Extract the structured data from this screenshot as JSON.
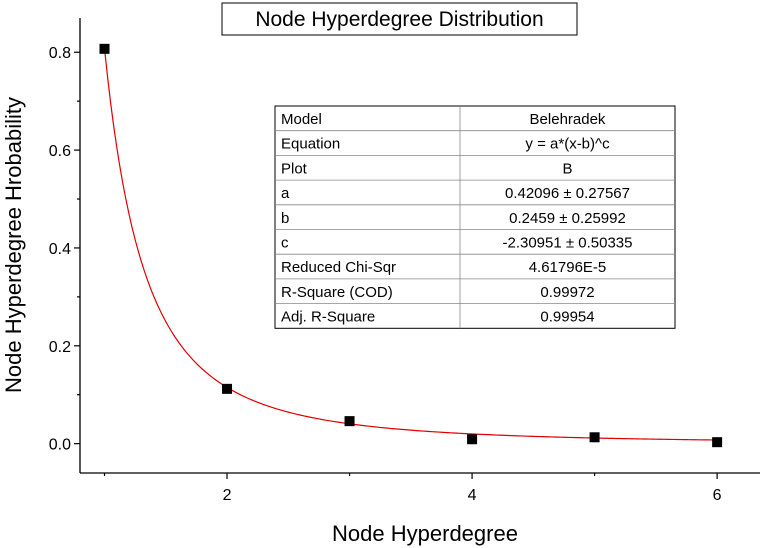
{
  "chart_data": {
    "type": "scatter",
    "title": "Node  Hyperdegree Distribution",
    "xlabel": "Node  Hyperdegree",
    "ylabel": "Node Hyperdegree Hrobability",
    "xlim": [
      0.8,
      6.35
    ],
    "ylim": [
      -0.06,
      0.87
    ],
    "x_ticks": [
      2,
      4,
      6
    ],
    "y_ticks": [
      0.0,
      0.2,
      0.4,
      0.6,
      0.8
    ],
    "y_tick_labels": [
      "0.0",
      "0.2",
      "0.4",
      "0.6",
      "0.8"
    ],
    "series": [
      {
        "x": [
          1,
          2,
          3,
          4,
          5,
          6
        ],
        "y": [
          0.807,
          0.112,
          0.046,
          0.009,
          0.013,
          0.003
        ],
        "marker": "square",
        "color": "#000000"
      }
    ],
    "fit": {
      "a": 0.42096,
      "b": 0.2459,
      "c": -2.30951,
      "x_range": [
        1.0,
        6.0
      ],
      "color": "#e00000"
    },
    "fit_table": {
      "rows": [
        [
          "Model",
          "Belehradek"
        ],
        [
          "Equation",
          "y = a*(x-b)^c"
        ],
        [
          "Plot",
          "B"
        ],
        [
          "a",
          "0.42096 ± 0.27567"
        ],
        [
          "b",
          "0.2459 ± 0.25992"
        ],
        [
          "c",
          "-2.30951 ± 0.50335"
        ],
        [
          "Reduced Chi-Sqr",
          "4.61796E-5"
        ],
        [
          "R-Square (COD)",
          "0.99972"
        ],
        [
          "Adj. R-Square",
          "0.99954"
        ]
      ]
    }
  }
}
